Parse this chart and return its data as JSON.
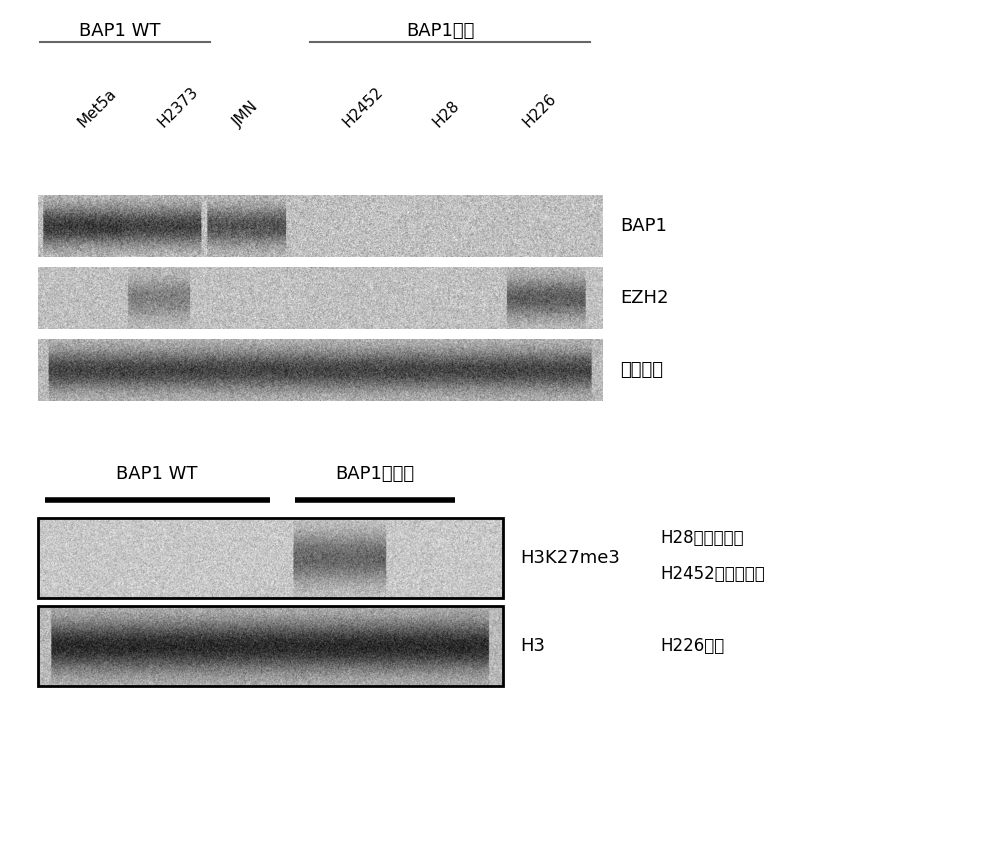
{
  "panel1": {
    "title_wt": "BAP1 WT",
    "title_null": "BAP1无效",
    "lane_labels": [
      "Met5a",
      "H2373",
      "JMN",
      "H2452",
      "H28",
      "H226"
    ],
    "band_labels": [
      "BAP1",
      "EZH2",
      "微管蛋白"
    ]
  },
  "panel2": {
    "title_wt": "BAP1 WT",
    "title_mut": "BAP1突变型",
    "band_labels": [
      "H3K27me3",
      "H3"
    ],
    "annotations": [
      "H28纯合性缺失",
      "H2452纯合性错义",
      "H226缺失"
    ]
  },
  "font_size_title": 13,
  "font_size_label": 11,
  "font_size_band": 13,
  "font_size_annot": 12
}
